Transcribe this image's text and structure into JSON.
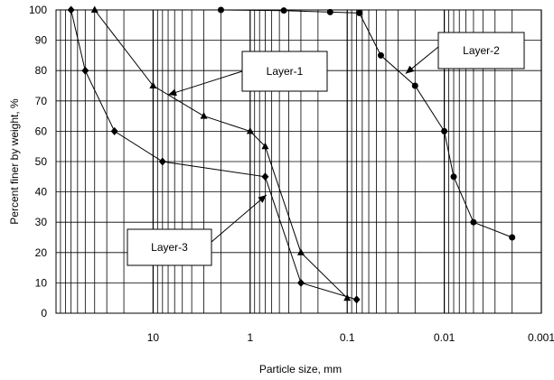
{
  "chart_data": {
    "type": "scatter",
    "xlabel": "Particle size, mm",
    "ylabel": "Percent finer by weight, %",
    "x_scale": "log",
    "x_reversed": true,
    "xlim": [
      100,
      0.001
    ],
    "ylim": [
      0,
      100
    ],
    "grid": "on",
    "x_ticks": [
      {
        "value": 10,
        "label": "10"
      },
      {
        "value": 1,
        "label": "1"
      },
      {
        "value": 0.1,
        "label": "0.1"
      },
      {
        "value": 0.01,
        "label": "0.01"
      },
      {
        "value": 0.001,
        "label": "0.001"
      }
    ],
    "y_ticks": [
      0,
      10,
      20,
      30,
      40,
      50,
      60,
      70,
      80,
      90,
      100
    ],
    "series": [
      {
        "name": "Layer-1",
        "marker": "triangle",
        "x": [
          40,
          10,
          3,
          1,
          0.7,
          0.3,
          0.1
        ],
        "y": [
          100,
          75,
          65,
          60,
          55,
          20,
          5
        ]
      },
      {
        "name": "Layer-2",
        "marker": "circle",
        "x": [
          2,
          0.45,
          0.15,
          0.075,
          0.045,
          0.02,
          0.01,
          0.008,
          0.005,
          0.002
        ],
        "y": [
          100,
          99.8,
          99.3,
          99,
          85,
          75,
          60,
          45,
          30,
          25
        ]
      },
      {
        "name": "Layer-3",
        "marker": "diamond",
        "x": [
          70,
          50,
          25,
          8,
          0.7,
          0.3,
          0.08
        ],
        "y": [
          100,
          80,
          60,
          50,
          45,
          10,
          4.5
        ]
      }
    ],
    "annotations": [
      {
        "text": "Layer-1",
        "target_x": 7,
        "target_y": 72
      },
      {
        "text": "Layer-2",
        "target_x": 0.025,
        "target_y": 79
      },
      {
        "text": "Layer-3",
        "target_x": 0.68,
        "target_y": 39
      }
    ]
  }
}
